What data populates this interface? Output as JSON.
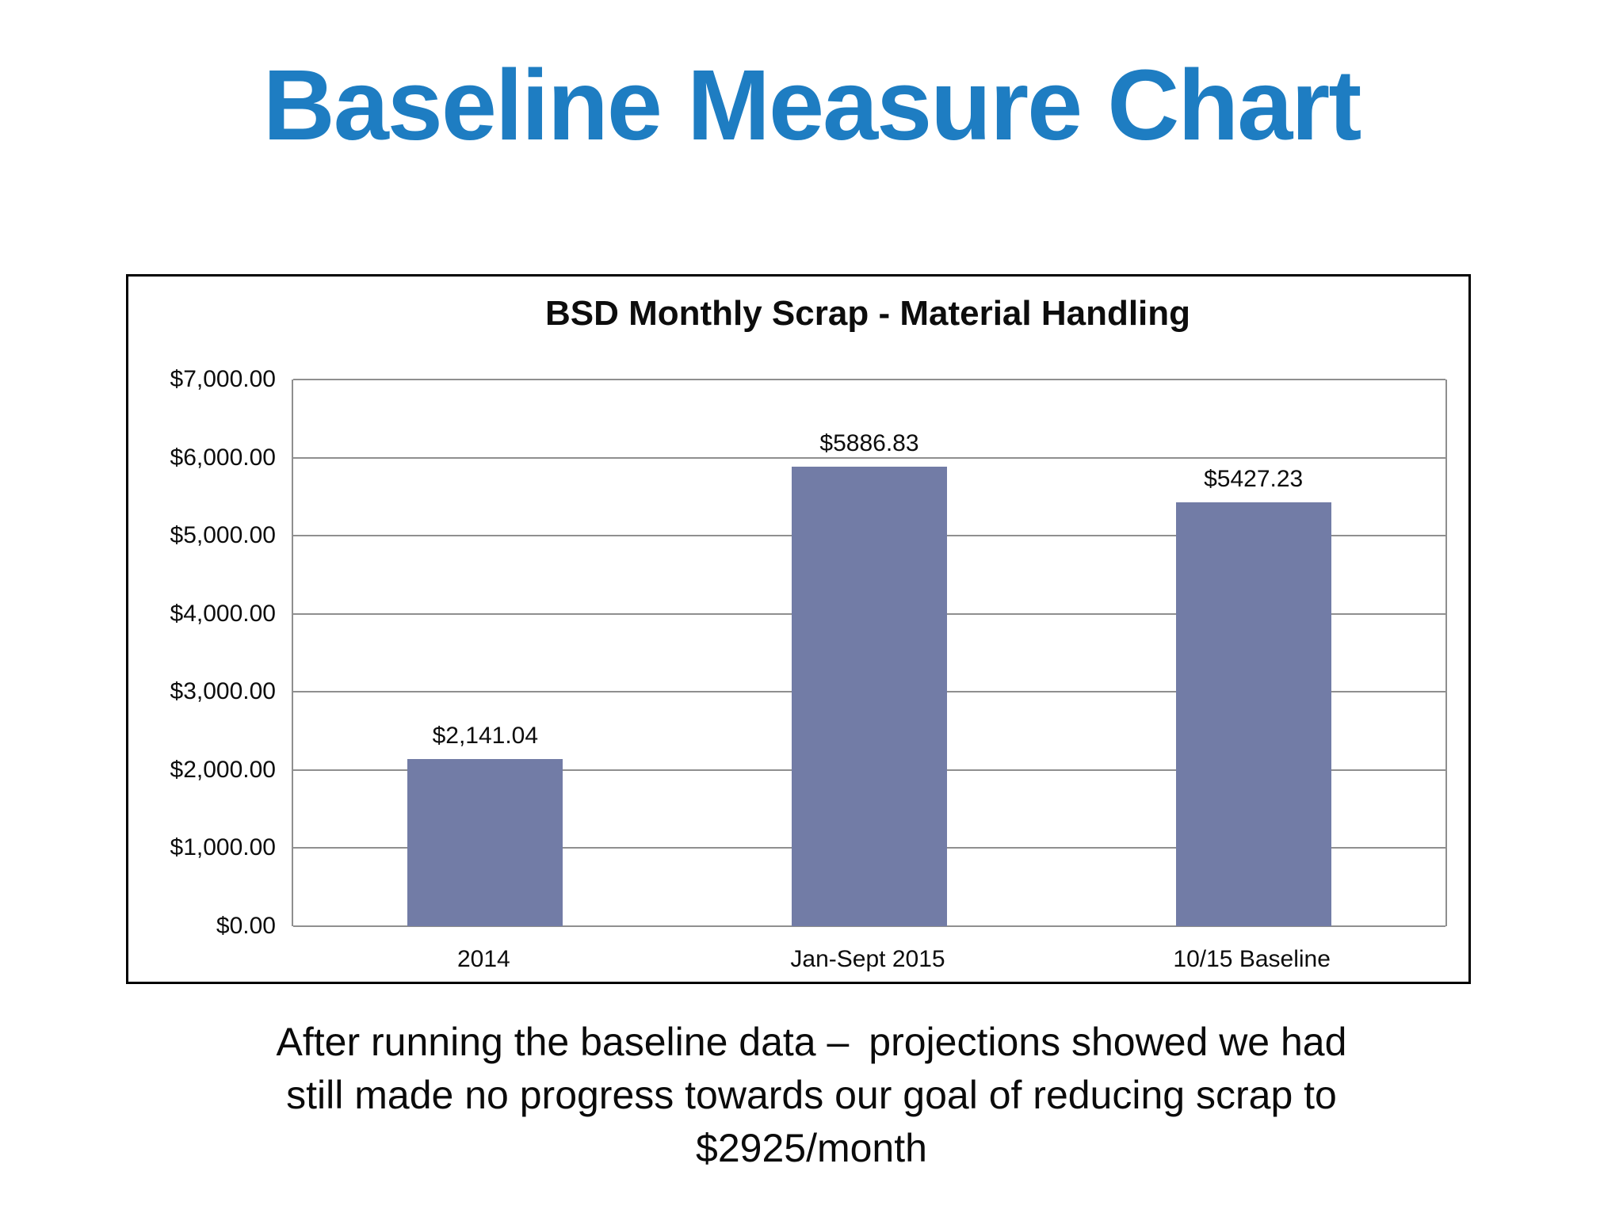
{
  "title": {
    "text": "Baseline Measure Chart",
    "color": "#1e7dc2"
  },
  "chart_data": {
    "type": "bar",
    "title": "BSD Monthly Scrap - Material Handling",
    "categories": [
      "2014",
      "Jan-Sept 2015",
      "10/15 Baseline"
    ],
    "values": [
      2141.04,
      5886.83,
      5427.23
    ],
    "data_labels": [
      "$2,141.04",
      "$5886.83",
      "$5427.23"
    ],
    "y_tick_labels": [
      "$0.00",
      "$1,000.00",
      "$2,000.00",
      "$3,000.00",
      "$4,000.00",
      "$5,000.00",
      "$6,000.00",
      "$7,000.00"
    ],
    "ylim": [
      0,
      7000
    ],
    "y_step": 1000,
    "grid": true,
    "legend": "none",
    "bar_color": "#727CA6",
    "gridline_color": "#8f8f8f",
    "xlabel": "",
    "ylabel": ""
  },
  "caption": {
    "lines": [
      "After running the baseline data – projections showed we had",
      "still made no progress towards our goal of reducing scrap to",
      "$2925/month"
    ]
  }
}
